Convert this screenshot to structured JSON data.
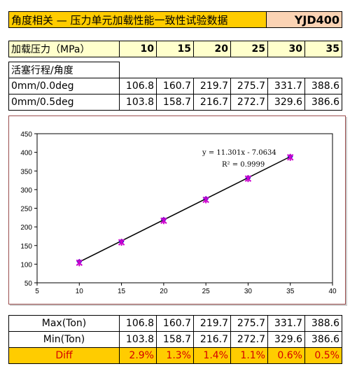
{
  "header": {
    "title": "角度相关 — 压力单元加载性能一致性试验数据",
    "model": "YJD400"
  },
  "pressure_row": {
    "label": "加载压力（MPa）",
    "values": [
      "10",
      "15",
      "20",
      "25",
      "30",
      "35"
    ]
  },
  "data_table": {
    "header_label": "活塞行程/角度",
    "rows": [
      {
        "label": "0mm/0.0deg",
        "values": [
          "106.8",
          "160.7",
          "219.7",
          "275.7",
          "331.7",
          "388.6"
        ]
      },
      {
        "label": "0mm/0.5deg",
        "values": [
          "103.8",
          "158.7",
          "216.7",
          "272.7",
          "329.6",
          "386.6"
        ]
      }
    ]
  },
  "summary_table": {
    "rows": [
      {
        "label": "Max(Ton)",
        "values": [
          "106.8",
          "160.7",
          "219.7",
          "275.7",
          "331.7",
          "388.6"
        ]
      },
      {
        "label": "Min(Ton)",
        "values": [
          "103.8",
          "158.7",
          "216.7",
          "272.7",
          "329.6",
          "386.6"
        ]
      },
      {
        "label": "Diff",
        "values": [
          "2.9%",
          "1.3%",
          "1.4%",
          "1.1%",
          "0.6%",
          "0.5%"
        ]
      }
    ]
  },
  "chart_data": {
    "type": "scatter",
    "title": "",
    "xlabel": "",
    "ylabel": "",
    "xlim": [
      5,
      40
    ],
    "ylim": [
      50,
      450
    ],
    "x_ticks": [
      5,
      10,
      15,
      20,
      25,
      30,
      35,
      40
    ],
    "y_ticks": [
      50,
      100,
      150,
      200,
      250,
      300,
      350,
      400,
      450
    ],
    "grid": false,
    "x": [
      10,
      15,
      20,
      25,
      30,
      35
    ],
    "series": [
      {
        "values": [
          106.8,
          160.7,
          219.7,
          275.7,
          331.7,
          388.6
        ],
        "color": "#0000cc",
        "marker": "diamond"
      },
      {
        "values": [
          103.8,
          158.7,
          216.7,
          272.7,
          329.6,
          386.6
        ],
        "color": "#cc00cc",
        "marker": "star"
      }
    ],
    "trendline": {
      "slope": 11.301,
      "intercept": -7.0634,
      "color": "#000000"
    },
    "annotations": {
      "equation": "y = 11.301x - 7.0634",
      "r_squared": "R² = 0.9999"
    }
  }
}
